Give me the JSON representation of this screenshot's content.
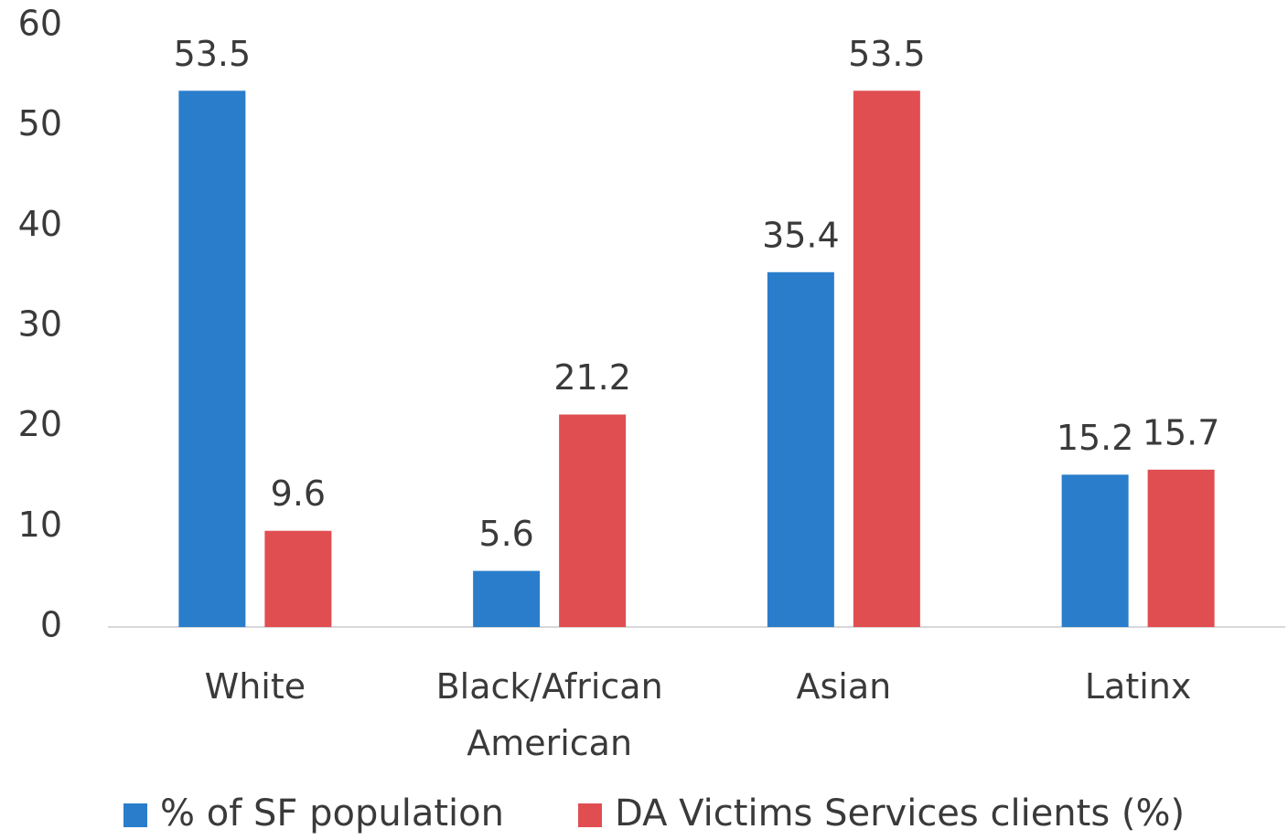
{
  "chart_data": {
    "type": "bar",
    "categories": [
      "White",
      "Black/African American",
      "Asian",
      "Latinx"
    ],
    "series": [
      {
        "name": "% of SF population",
        "color": "#2a7dcb",
        "values": [
          53.5,
          5.6,
          35.4,
          15.2
        ]
      },
      {
        "name": "DA Victims Services clients (%)",
        "color": "#e04e52",
        "values": [
          9.6,
          21.2,
          53.5,
          15.7
        ]
      }
    ],
    "ylim": [
      0,
      60
    ],
    "yticks": [
      0,
      10,
      20,
      30,
      40,
      50,
      60
    ],
    "grid": false,
    "legend": "bottom"
  }
}
